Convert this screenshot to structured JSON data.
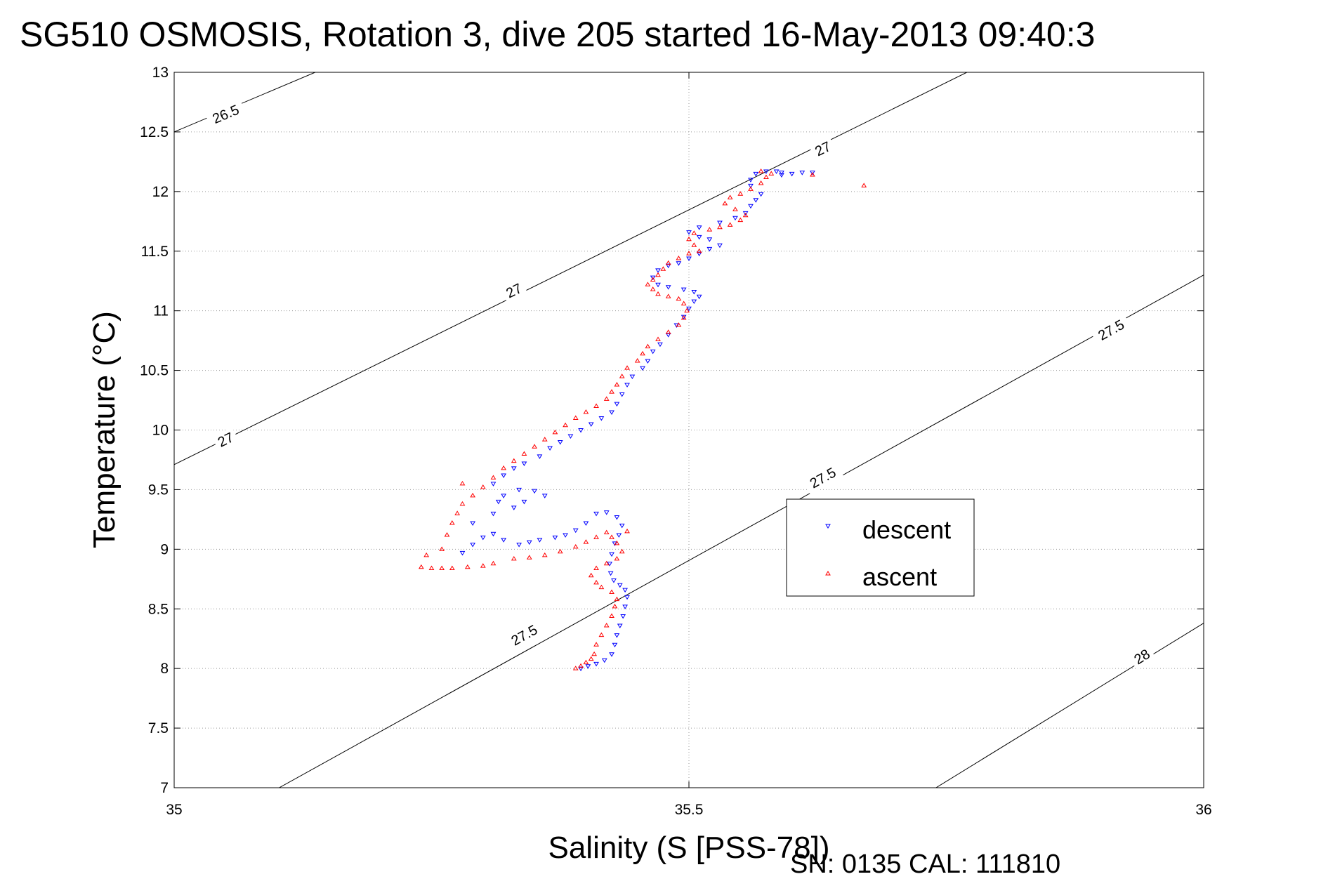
{
  "chart_data": {
    "type": "scatter",
    "title": "SG510 OSMOSIS, Rotation 3, dive 205 started 16-May-2013 09:40:3",
    "xlabel": "Salinity (S [PSS-78])",
    "ylabel": "Temperature (°C)",
    "footer": "SN: 0135  CAL: 111810",
    "xlim": [
      35,
      36
    ],
    "ylim": [
      7,
      13
    ],
    "x_ticks": [
      "35",
      "35.5",
      "36"
    ],
    "y_ticks": [
      "7",
      "7.5",
      "8",
      "8.5",
      "9",
      "9.5",
      "10",
      "10.5",
      "11",
      "11.5",
      "12",
      "12.5",
      "13"
    ],
    "grid": true,
    "legend": {
      "placement": "lower-right",
      "entries": [
        "descent",
        "ascent"
      ]
    },
    "density_contours": [
      {
        "label": "26.5",
        "points": [
          [
            35,
            12.5
          ],
          [
            35.137,
            13.0
          ]
        ]
      },
      {
        "label": "27",
        "points": [
          [
            35,
            9.71
          ],
          [
            35.77,
            13.0
          ]
        ]
      },
      {
        "label": "27.5",
        "points": [
          [
            35.102,
            7.0
          ],
          [
            36,
            11.3
          ]
        ]
      },
      {
        "label": "28",
        "points": [
          [
            35.74,
            7.0
          ],
          [
            36,
            8.38
          ]
        ]
      }
    ],
    "contour_label_positions": [
      {
        "label": "26.5",
        "at": [
          35.05,
          12.65
        ]
      },
      {
        "label": "27",
        "at": [
          35.05,
          9.92
        ]
      },
      {
        "label": "27",
        "at": [
          35.33,
          11.17
        ]
      },
      {
        "label": "27",
        "at": [
          35.63,
          12.36
        ]
      },
      {
        "label": "27.5",
        "at": [
          35.34,
          8.28
        ]
      },
      {
        "label": "27.5",
        "at": [
          35.63,
          9.6
        ]
      },
      {
        "label": "27.5",
        "at": [
          35.91,
          10.84
        ]
      },
      {
        "label": "28",
        "at": [
          35.94,
          8.1
        ]
      }
    ],
    "series": [
      {
        "name": "descent",
        "color": "#0000ff",
        "marker": "triangle-down",
        "points": [
          [
            35.395,
            8.0
          ],
          [
            35.402,
            8.02
          ],
          [
            35.41,
            8.04
          ],
          [
            35.418,
            8.07
          ],
          [
            35.425,
            8.12
          ],
          [
            35.428,
            8.2
          ],
          [
            35.43,
            8.28
          ],
          [
            35.433,
            8.36
          ],
          [
            35.436,
            8.44
          ],
          [
            35.438,
            8.52
          ],
          [
            35.44,
            8.6
          ],
          [
            35.438,
            8.66
          ],
          [
            35.433,
            8.7
          ],
          [
            35.427,
            8.74
          ],
          [
            35.424,
            8.8
          ],
          [
            35.423,
            8.88
          ],
          [
            35.425,
            8.96
          ],
          [
            35.428,
            9.05
          ],
          [
            35.432,
            9.12
          ],
          [
            35.435,
            9.2
          ],
          [
            35.43,
            9.27
          ],
          [
            35.42,
            9.31
          ],
          [
            35.41,
            9.3
          ],
          [
            35.4,
            9.22
          ],
          [
            35.39,
            9.16
          ],
          [
            35.38,
            9.12
          ],
          [
            35.37,
            9.1
          ],
          [
            35.355,
            9.08
          ],
          [
            35.345,
            9.06
          ],
          [
            35.335,
            9.04
          ],
          [
            35.32,
            9.08
          ],
          [
            35.31,
            9.13
          ],
          [
            35.3,
            9.1
          ],
          [
            35.29,
            9.04
          ],
          [
            35.28,
            8.97
          ],
          [
            35.29,
            9.22
          ],
          [
            35.31,
            9.3
          ],
          [
            35.32,
            9.45
          ],
          [
            35.335,
            9.5
          ],
          [
            35.35,
            9.49
          ],
          [
            35.36,
            9.45
          ],
          [
            35.34,
            9.4
          ],
          [
            35.33,
            9.35
          ],
          [
            35.315,
            9.4
          ],
          [
            35.31,
            9.55
          ],
          [
            35.32,
            9.62
          ],
          [
            35.33,
            9.68
          ],
          [
            35.34,
            9.72
          ],
          [
            35.355,
            9.78
          ],
          [
            35.365,
            9.85
          ],
          [
            35.375,
            9.9
          ],
          [
            35.385,
            9.95
          ],
          [
            35.395,
            10.0
          ],
          [
            35.405,
            10.05
          ],
          [
            35.415,
            10.1
          ],
          [
            35.425,
            10.15
          ],
          [
            35.43,
            10.22
          ],
          [
            35.435,
            10.3
          ],
          [
            35.44,
            10.38
          ],
          [
            35.445,
            10.45
          ],
          [
            35.455,
            10.52
          ],
          [
            35.46,
            10.58
          ],
          [
            35.465,
            10.66
          ],
          [
            35.472,
            10.72
          ],
          [
            35.48,
            10.8
          ],
          [
            35.488,
            10.88
          ],
          [
            35.495,
            10.95
          ],
          [
            35.5,
            11.02
          ],
          [
            35.505,
            11.08
          ],
          [
            35.51,
            11.12
          ],
          [
            35.505,
            11.16
          ],
          [
            35.495,
            11.18
          ],
          [
            35.48,
            11.2
          ],
          [
            35.47,
            11.22
          ],
          [
            35.465,
            11.28
          ],
          [
            35.47,
            11.34
          ],
          [
            35.48,
            11.38
          ],
          [
            35.49,
            11.4
          ],
          [
            35.5,
            11.44
          ],
          [
            35.51,
            11.48
          ],
          [
            35.52,
            11.52
          ],
          [
            35.53,
            11.55
          ],
          [
            35.52,
            11.6
          ],
          [
            35.51,
            11.62
          ],
          [
            35.5,
            11.66
          ],
          [
            35.51,
            11.7
          ],
          [
            35.53,
            11.74
          ],
          [
            35.545,
            11.78
          ],
          [
            35.555,
            11.82
          ],
          [
            35.56,
            11.88
          ],
          [
            35.565,
            11.93
          ],
          [
            35.57,
            11.98
          ],
          [
            35.56,
            12.05
          ],
          [
            35.56,
            12.1
          ],
          [
            35.565,
            12.15
          ],
          [
            35.575,
            12.17
          ],
          [
            35.585,
            12.17
          ],
          [
            35.59,
            12.16
          ],
          [
            35.6,
            12.15
          ],
          [
            35.61,
            12.16
          ],
          [
            35.62,
            12.16
          ],
          [
            35.59,
            12.14
          ]
        ]
      },
      {
        "name": "ascent",
        "color": "#ff0000",
        "marker": "triangle-up",
        "points": [
          [
            35.39,
            8.0
          ],
          [
            35.395,
            8.02
          ],
          [
            35.4,
            8.05
          ],
          [
            35.405,
            8.08
          ],
          [
            35.408,
            8.12
          ],
          [
            35.41,
            8.2
          ],
          [
            35.415,
            8.28
          ],
          [
            35.42,
            8.36
          ],
          [
            35.425,
            8.44
          ],
          [
            35.428,
            8.52
          ],
          [
            35.43,
            8.58
          ],
          [
            35.425,
            8.64
          ],
          [
            35.415,
            8.68
          ],
          [
            35.41,
            8.72
          ],
          [
            35.405,
            8.78
          ],
          [
            35.41,
            8.84
          ],
          [
            35.42,
            8.88
          ],
          [
            35.43,
            8.92
          ],
          [
            35.435,
            8.98
          ],
          [
            35.43,
            9.05
          ],
          [
            35.425,
            9.1
          ],
          [
            35.42,
            9.14
          ],
          [
            35.41,
            9.1
          ],
          [
            35.4,
            9.06
          ],
          [
            35.39,
            9.02
          ],
          [
            35.375,
            8.98
          ],
          [
            35.36,
            8.95
          ],
          [
            35.345,
            8.93
          ],
          [
            35.33,
            8.92
          ],
          [
            35.31,
            8.88
          ],
          [
            35.3,
            8.86
          ],
          [
            35.285,
            8.85
          ],
          [
            35.27,
            8.84
          ],
          [
            35.26,
            8.84
          ],
          [
            35.25,
            8.84
          ],
          [
            35.24,
            8.85
          ],
          [
            35.26,
            9.0
          ],
          [
            35.265,
            9.12
          ],
          [
            35.27,
            9.22
          ],
          [
            35.275,
            9.3
          ],
          [
            35.28,
            9.38
          ],
          [
            35.29,
            9.45
          ],
          [
            35.3,
            9.52
          ],
          [
            35.31,
            9.6
          ],
          [
            35.32,
            9.68
          ],
          [
            35.33,
            9.74
          ],
          [
            35.34,
            9.8
          ],
          [
            35.35,
            9.86
          ],
          [
            35.36,
            9.92
          ],
          [
            35.37,
            9.98
          ],
          [
            35.38,
            10.04
          ],
          [
            35.39,
            10.1
          ],
          [
            35.4,
            10.15
          ],
          [
            35.41,
            10.2
          ],
          [
            35.42,
            10.26
          ],
          [
            35.425,
            10.32
          ],
          [
            35.43,
            10.38
          ],
          [
            35.435,
            10.45
          ],
          [
            35.44,
            10.52
          ],
          [
            35.45,
            10.58
          ],
          [
            35.455,
            10.64
          ],
          [
            35.46,
            10.7
          ],
          [
            35.47,
            10.76
          ],
          [
            35.48,
            10.82
          ],
          [
            35.49,
            10.88
          ],
          [
            35.495,
            10.94
          ],
          [
            35.498,
            11.0
          ],
          [
            35.495,
            11.06
          ],
          [
            35.49,
            11.1
          ],
          [
            35.48,
            11.12
          ],
          [
            35.47,
            11.14
          ],
          [
            35.465,
            11.18
          ],
          [
            35.46,
            11.22
          ],
          [
            35.465,
            11.26
          ],
          [
            35.47,
            11.3
          ],
          [
            35.475,
            11.35
          ],
          [
            35.48,
            11.4
          ],
          [
            35.49,
            11.44
          ],
          [
            35.5,
            11.48
          ],
          [
            35.51,
            11.5
          ],
          [
            35.505,
            11.55
          ],
          [
            35.5,
            11.6
          ],
          [
            35.505,
            11.65
          ],
          [
            35.52,
            11.68
          ],
          [
            35.53,
            11.7
          ],
          [
            35.54,
            11.72
          ],
          [
            35.55,
            11.76
          ],
          [
            35.555,
            11.8
          ],
          [
            35.545,
            11.85
          ],
          [
            35.535,
            11.9
          ],
          [
            35.54,
            11.95
          ],
          [
            35.55,
            11.98
          ],
          [
            35.56,
            12.02
          ],
          [
            35.57,
            12.07
          ],
          [
            35.575,
            12.12
          ],
          [
            35.58,
            12.15
          ],
          [
            35.57,
            12.17
          ],
          [
            35.62,
            12.14
          ],
          [
            35.67,
            12.05
          ],
          [
            35.44,
            9.15
          ],
          [
            35.28,
            9.55
          ],
          [
            35.245,
            8.95
          ]
        ]
      }
    ]
  }
}
